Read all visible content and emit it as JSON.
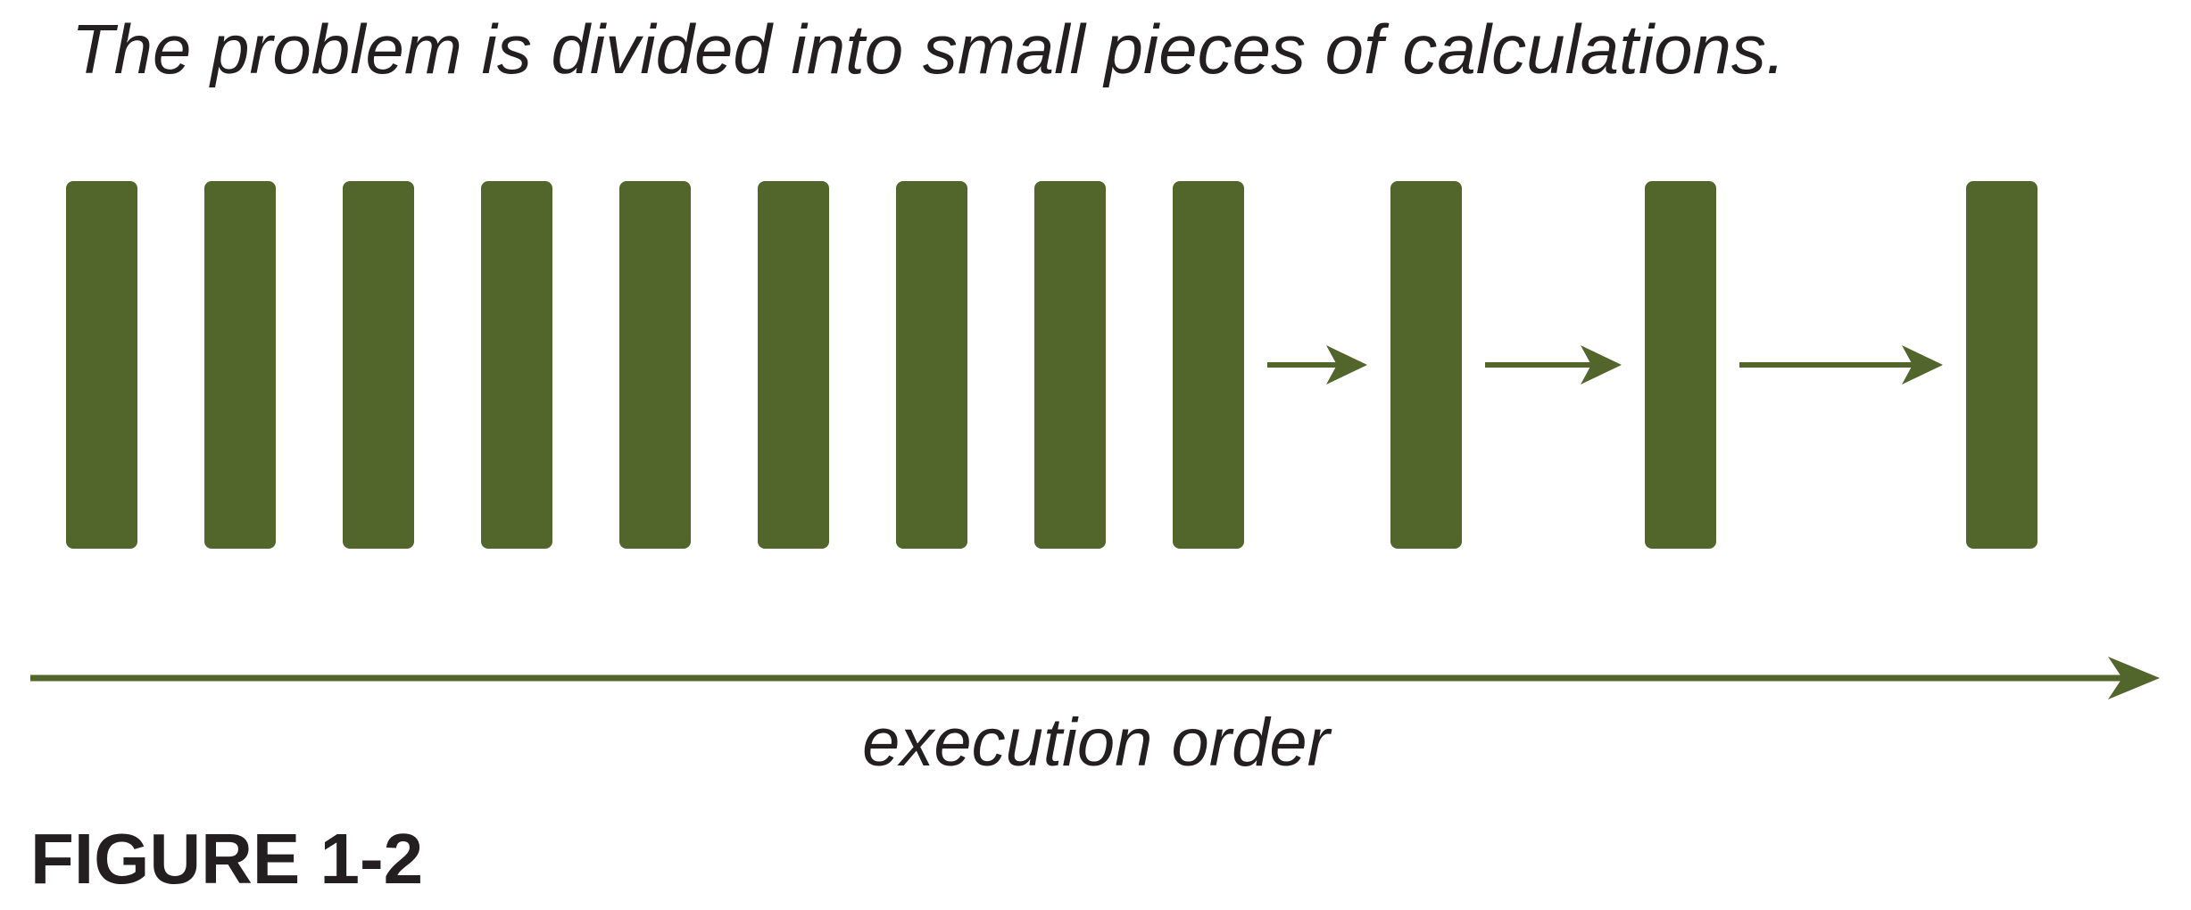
{
  "diagram": {
    "caption": "The problem is divided into small pieces of calculations.",
    "axis_label": "execution order",
    "figure_label": "FIGURE 1-2",
    "block_count": 12,
    "arrows_between": [
      [
        8,
        9
      ],
      [
        9,
        10
      ],
      [
        10,
        11
      ]
    ],
    "colors": {
      "block": "#52662c",
      "arrow": "#52662c",
      "text": "#231f20"
    }
  }
}
